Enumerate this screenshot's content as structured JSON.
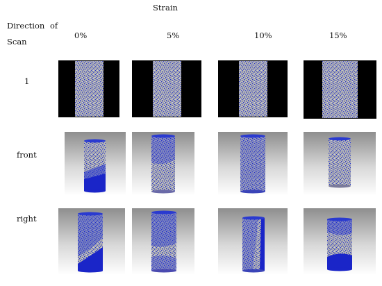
{
  "header": {
    "strain_label": "Strain",
    "direction_label_line1": "Direction",
    "direction_label_of": "of",
    "direction_label_line2": "Scan",
    "strain_levels": [
      "0%",
      "5%",
      "10%",
      "15%"
    ]
  },
  "rows": [
    {
      "label": "1",
      "view": "scan-slice"
    },
    {
      "label": "front",
      "view": "cylinder-3d"
    },
    {
      "label": "right",
      "view": "cylinder-3d"
    }
  ],
  "colors": {
    "particle_blue": "#1f2fd0",
    "particle_grey": "#b7b7b0",
    "scan_background": "#000000"
  }
}
